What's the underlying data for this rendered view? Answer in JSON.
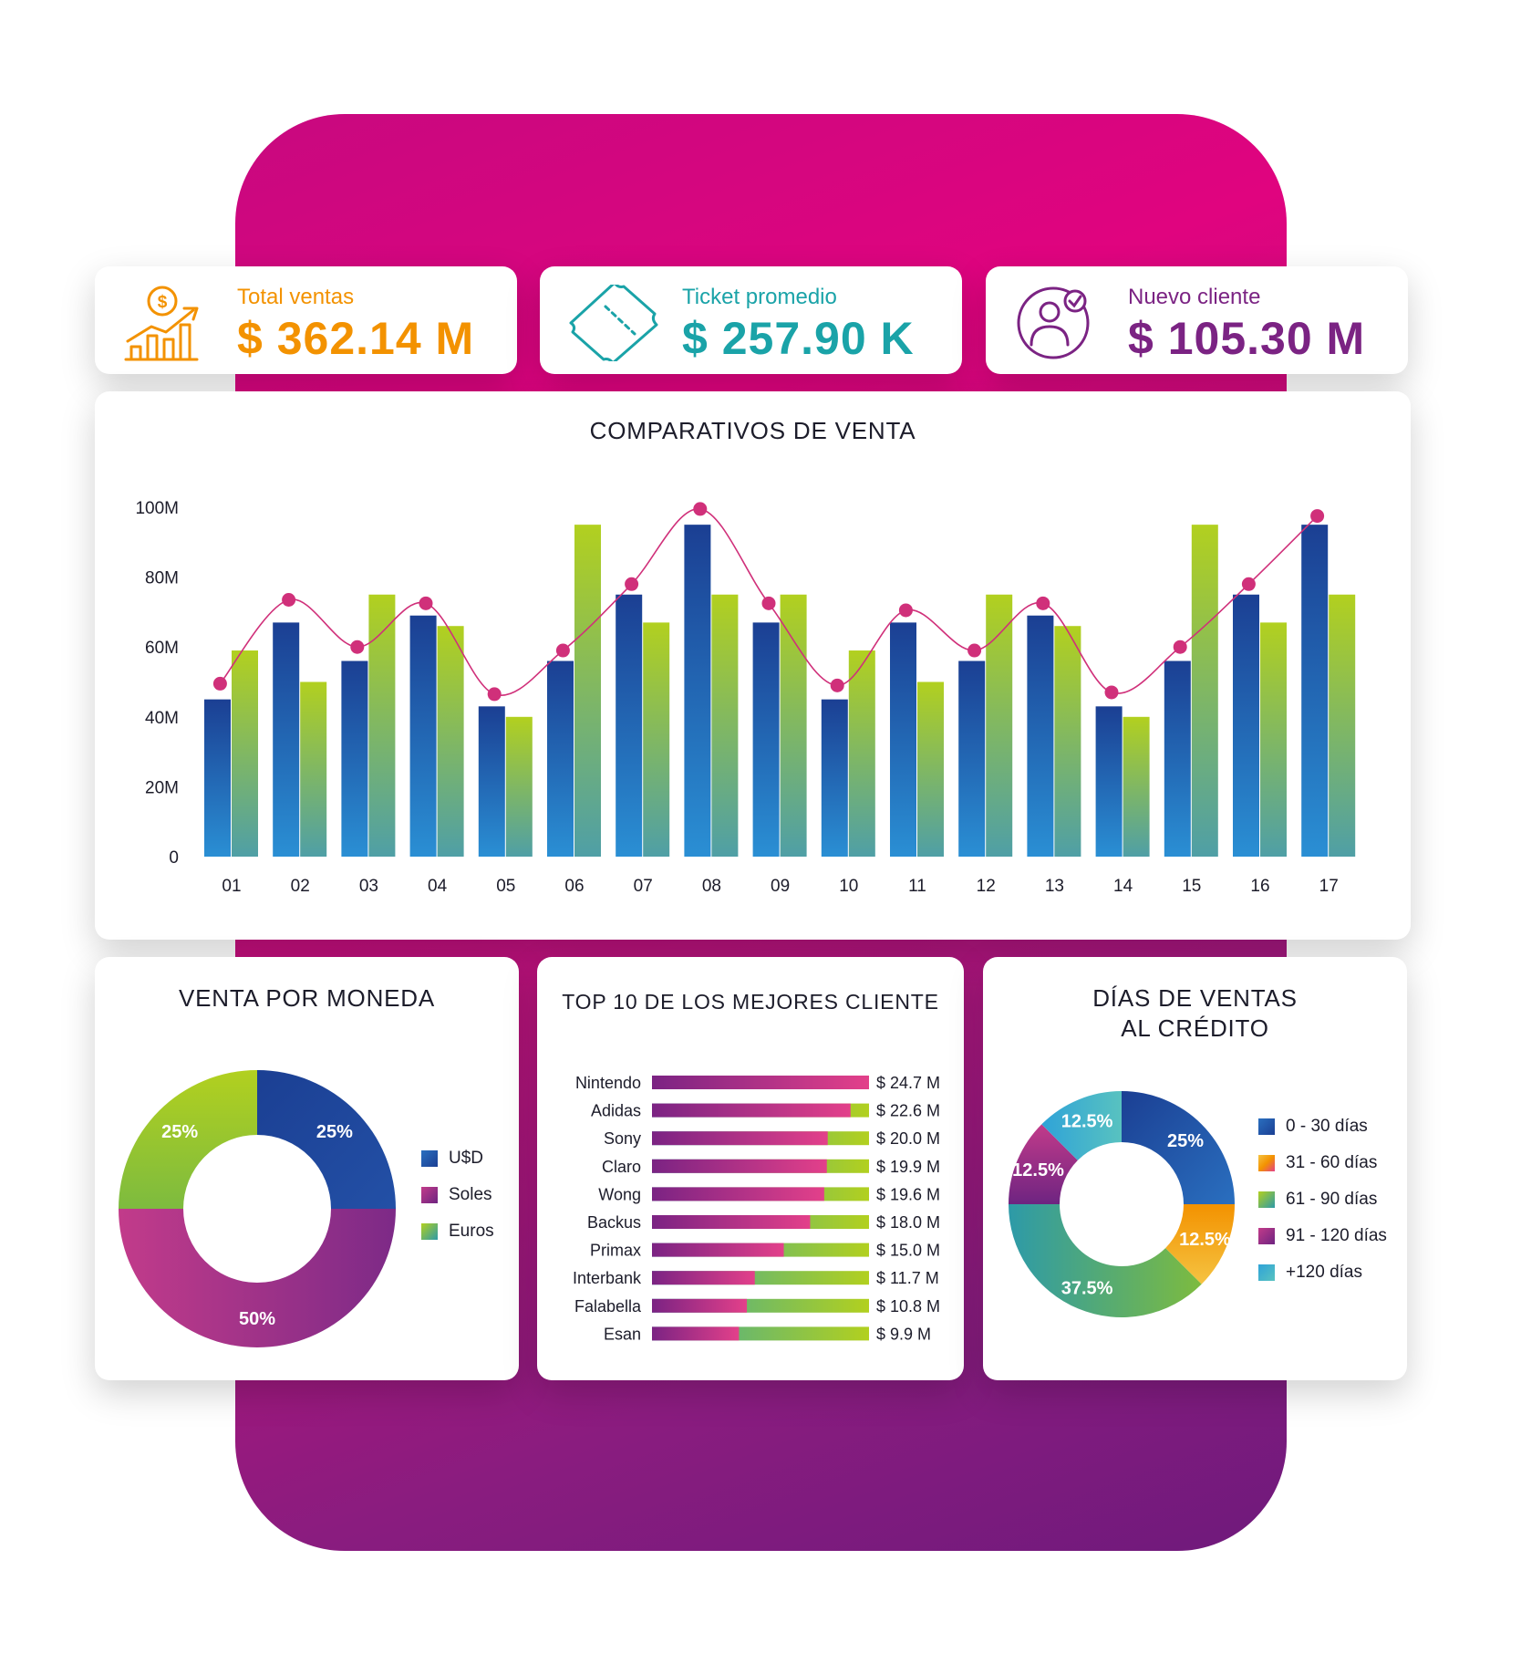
{
  "kpis": [
    {
      "label": "Total ventas",
      "value": "$ 362.14 M",
      "color": "#f39200",
      "icon": "sales-growth-icon"
    },
    {
      "label": "Ticket promedio",
      "value": "$ 257.90 K",
      "color": "#1aa3a8",
      "icon": "ticket-icon"
    },
    {
      "label": "Nuevo cliente",
      "value": "$ 105.30 M",
      "color": "#7b2383",
      "icon": "new-client-icon"
    }
  ],
  "titles": {
    "comparativos": "COMPARATIVOS DE VENTA",
    "moneda": "VENTA POR MONEDA",
    "top10": "TOP 10 DE LOS MEJORES CLIENTE",
    "dias_line1": "DÍAS DE VENTAS",
    "dias_line2": "AL CRÉDITO"
  },
  "chart_data": [
    {
      "type": "bar",
      "title": "COMPARATIVOS DE VENTA",
      "categories": [
        "01",
        "02",
        "03",
        "04",
        "05",
        "06",
        "07",
        "08",
        "09",
        "10",
        "11",
        "12",
        "13",
        "14",
        "15",
        "16",
        "17"
      ],
      "y_ticks": [
        "0",
        "20M",
        "40M",
        "60M",
        "80M",
        "100M"
      ],
      "ylim": [
        0,
        100
      ],
      "grid": false,
      "series": [
        {
          "kind": "bar",
          "values": [
            45,
            67,
            56,
            69,
            43,
            56,
            75,
            95,
            67,
            45,
            67,
            56,
            69,
            43,
            56,
            75,
            95
          ],
          "colors": [
            "#1b3f93",
            "#2a8fd4"
          ]
        },
        {
          "kind": "bar",
          "values": [
            59,
            50,
            75,
            66,
            40,
            95,
            67,
            75,
            75,
            59,
            50,
            75,
            66,
            40,
            95,
            67,
            75
          ],
          "colors": [
            "#b2d01f",
            "#4f9fa6"
          ]
        },
        {
          "kind": "line",
          "values": [
            49.5,
            73.5,
            60,
            72.5,
            46.5,
            59,
            78,
            99.5,
            72.5,
            49,
            70.5,
            59,
            72.5,
            47,
            60,
            78,
            97.5
          ],
          "color": "#d0307a"
        }
      ]
    },
    {
      "type": "pie",
      "title": "VENTA POR MONEDA",
      "labels": [
        "U$D",
        "Soles",
        "Euros"
      ],
      "values": [
        25,
        50,
        25
      ],
      "value_labels": [
        "25%",
        "50%",
        "25%"
      ],
      "colors": [
        [
          "#1b3f93",
          "#2350a6"
        ],
        [
          "#c23b8a",
          "#7d2a87"
        ],
        [
          "#b2d01f",
          "#7dbb3f"
        ]
      ]
    },
    {
      "type": "bar",
      "orientation": "horizontal",
      "title": "TOP 10 DE LOS MEJORES CLIENTE",
      "categories": [
        "Nintendo",
        "Adidas",
        "Sony",
        "Claro",
        "Wong",
        "Backus",
        "Primax",
        "Interbank",
        "Falabella",
        "Esan"
      ],
      "values": [
        24.7,
        22.6,
        20.0,
        19.9,
        19.6,
        18.0,
        15.0,
        11.7,
        10.8,
        9.9
      ],
      "value_labels": [
        "$ 24.7 M",
        "$ 22.6 M",
        "$ 20.0 M",
        "$ 19.9  M",
        "$ 19.6  M",
        "$ 18.0  M",
        "$ 15.0  M",
        "$ 11.7   M",
        "$ 10.8  M",
        "$ 9.9    M"
      ],
      "xlim": [
        0,
        24.7
      ]
    },
    {
      "type": "pie",
      "title": "DÍAS DE VENTAS AL CRÉDITO",
      "labels": [
        "0 - 30 días",
        "31 - 60 días",
        "61 - 90 días",
        "91 - 120 días",
        "+120 días"
      ],
      "values": [
        25,
        12.5,
        37.5,
        12.5,
        12.5
      ],
      "value_labels": [
        "25%",
        "12.5%",
        "37.5%",
        "12.5%",
        "12.5%"
      ],
      "colors": [
        [
          "#1b3f93",
          "#2a6fbf"
        ],
        [
          "#f39200",
          "#f5c342"
        ],
        [
          "#7dbb3f",
          "#2d9aa8"
        ],
        [
          "#c23b8a",
          "#6e2481"
        ],
        [
          "#2fa3d8",
          "#58c2c0"
        ]
      ]
    }
  ]
}
